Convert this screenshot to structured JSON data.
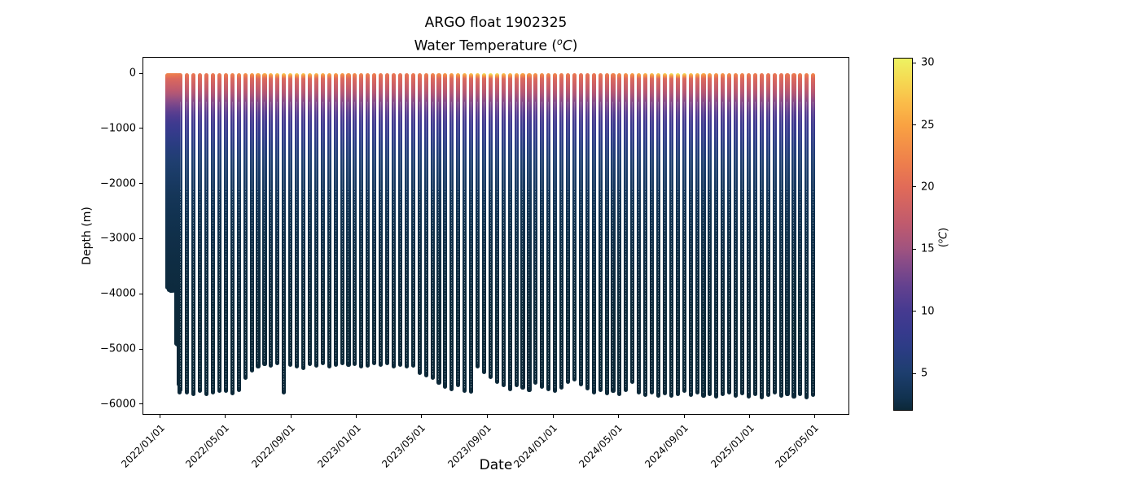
{
  "title": {
    "line1": "ARGO float 1902325",
    "line2_pre": "Water Temperature (",
    "line2_sup": "o",
    "line2_c": "C",
    "line2_post": ")"
  },
  "chart_data": {
    "type": "scatter",
    "title": "ARGO float 1902325",
    "subtitle": "Water Temperature (°C)",
    "xlabel": "Date",
    "ylabel": "Depth (m)",
    "grid": false,
    "epoch": "2022-01-01",
    "xlim_days": [
      -33,
      1281
    ],
    "ylim": [
      295,
      -6195
    ],
    "x_ticks": [
      {
        "label": "2022/01/01",
        "day": 0
      },
      {
        "label": "2022/05/01",
        "day": 120
      },
      {
        "label": "2022/09/01",
        "day": 243
      },
      {
        "label": "2023/01/01",
        "day": 365
      },
      {
        "label": "2023/05/01",
        "day": 485
      },
      {
        "label": "2023/09/01",
        "day": 608
      },
      {
        "label": "2024/01/01",
        "day": 730
      },
      {
        "label": "2024/05/01",
        "day": 851
      },
      {
        "label": "2024/09/01",
        "day": 974
      },
      {
        "label": "2025/01/01",
        "day": 1096
      },
      {
        "label": "2025/05/01",
        "day": 1216
      }
    ],
    "y_ticks": [
      {
        "label": "0",
        "value": 0
      },
      {
        "label": "−1000",
        "value": -1000
      },
      {
        "label": "−2000",
        "value": -2000
      },
      {
        "label": "−3000",
        "value": -3000
      },
      {
        "label": "−4000",
        "value": -4000
      },
      {
        "label": "−5000",
        "value": -5000
      },
      {
        "label": "−6000",
        "value": -6000
      }
    ],
    "colorbar": {
      "label_pre": "(",
      "label_sup": "o",
      "label_c": "C",
      "label_post": ")",
      "vmin": 2.0,
      "vmax": 30.4,
      "ticks": [
        {
          "label": "5",
          "value": 5
        },
        {
          "label": "10",
          "value": 10
        },
        {
          "label": "15",
          "value": 15
        },
        {
          "label": "20",
          "value": 20
        },
        {
          "label": "25",
          "value": 25
        },
        {
          "label": "30",
          "value": 30
        }
      ],
      "colormap": "thermal",
      "stops": [
        [
          2.0,
          "#0c2838"
        ],
        [
          3.0,
          "#113250"
        ],
        [
          5.0,
          "#1d3e6e"
        ],
        [
          7.0,
          "#2c3c85"
        ],
        [
          8.5,
          "#383a8e"
        ],
        [
          10.0,
          "#463a90"
        ],
        [
          12.0,
          "#63418f"
        ],
        [
          14.0,
          "#8a4c87"
        ],
        [
          15.0,
          "#a0537f"
        ],
        [
          17.0,
          "#bf5a6e"
        ],
        [
          20.0,
          "#e16b58"
        ],
        [
          22.0,
          "#ee7f4c"
        ],
        [
          25.0,
          "#f9a242"
        ],
        [
          27.0,
          "#fabf4a"
        ],
        [
          28.5,
          "#f6d751"
        ],
        [
          30.4,
          "#edf262"
        ]
      ]
    },
    "temp_profile_breakpoints": [
      [
        -100,
        19.5
      ],
      [
        -200,
        18.2
      ],
      [
        -300,
        17.0
      ],
      [
        -400,
        15.6
      ],
      [
        -500,
        14.1
      ],
      [
        -600,
        12.8
      ],
      [
        -700,
        11.5
      ],
      [
        -800,
        10.4
      ],
      [
        -900,
        9.4
      ],
      [
        -1000,
        8.6
      ],
      [
        -1200,
        7.2
      ],
      [
        -1400,
        6.1
      ],
      [
        -1600,
        5.2
      ],
      [
        -1800,
        4.6
      ],
      [
        -2000,
        4.1
      ],
      [
        -2200,
        3.6
      ],
      [
        -2600,
        3.0
      ],
      [
        -3000,
        2.7
      ],
      [
        -3500,
        2.4
      ],
      [
        -4000,
        2.2
      ],
      [
        -4500,
        2.05
      ],
      [
        -5000,
        1.95
      ],
      [
        -5500,
        1.88
      ],
      [
        -5950,
        1.85
      ]
    ],
    "profiles_format": [
      "day_since_epoch",
      "bottom_depth_m",
      "surface_temp_C"
    ],
    "profiles": [
      [
        14,
        -3930,
        22.6
      ],
      [
        16,
        -3960,
        22.3
      ],
      [
        18,
        -3940,
        22.5
      ],
      [
        20,
        -3985,
        22.2
      ],
      [
        22,
        -3950,
        22.4
      ],
      [
        24,
        -3975,
        22.1
      ],
      [
        26,
        -3945,
        22.3
      ],
      [
        28,
        -3970,
        22.0
      ],
      [
        30,
        -4940,
        22.2
      ],
      [
        32,
        -4960,
        21.9
      ],
      [
        34,
        -5680,
        22.1
      ],
      [
        36,
        -5830,
        21.8
      ],
      [
        38,
        -5780,
        21.8
      ],
      [
        50,
        -5820,
        21.6
      ],
      [
        62,
        -5850,
        21.3
      ],
      [
        74,
        -5800,
        21.2
      ],
      [
        86,
        -5860,
        21.3
      ],
      [
        98,
        -5830,
        21.5
      ],
      [
        110,
        -5790,
        21.6
      ],
      [
        122,
        -5800,
        22.2
      ],
      [
        134,
        -5840,
        22.6
      ],
      [
        146,
        -5780,
        23.1
      ],
      [
        158,
        -5560,
        23.8
      ],
      [
        170,
        -5430,
        24.6
      ],
      [
        182,
        -5350,
        25.6
      ],
      [
        194,
        -5310,
        26.4
      ],
      [
        206,
        -5340,
        27.1
      ],
      [
        218,
        -5300,
        27.7
      ],
      [
        230,
        -5820,
        28.0
      ],
      [
        242,
        -5330,
        28.3
      ],
      [
        254,
        -5360,
        28.2
      ],
      [
        266,
        -5390,
        27.9
      ],
      [
        278,
        -5310,
        27.4
      ],
      [
        290,
        -5340,
        26.9
      ],
      [
        302,
        -5300,
        26.3
      ],
      [
        314,
        -5350,
        25.6
      ],
      [
        326,
        -5320,
        25.0
      ],
      [
        338,
        -5290,
        24.4
      ],
      [
        350,
        -5330,
        23.9
      ],
      [
        362,
        -5310,
        23.4
      ],
      [
        374,
        -5360,
        23.0
      ],
      [
        386,
        -5340,
        22.6
      ],
      [
        398,
        -5300,
        22.2
      ],
      [
        410,
        -5330,
        21.8
      ],
      [
        422,
        -5290,
        21.5
      ],
      [
        434,
        -5350,
        21.3
      ],
      [
        446,
        -5320,
        21.2
      ],
      [
        458,
        -5360,
        21.4
      ],
      [
        470,
        -5340,
        21.6
      ],
      [
        482,
        -5470,
        21.9
      ],
      [
        494,
        -5520,
        22.4
      ],
      [
        506,
        -5560,
        22.9
      ],
      [
        518,
        -5650,
        23.6
      ],
      [
        530,
        -5720,
        24.4
      ],
      [
        542,
        -5760,
        25.2
      ],
      [
        554,
        -5700,
        26.1
      ],
      [
        566,
        -5790,
        26.9
      ],
      [
        578,
        -5810,
        27.6
      ],
      [
        590,
        -5350,
        28.1
      ],
      [
        602,
        -5450,
        29.6
      ],
      [
        614,
        -5550,
        30.2
      ],
      [
        626,
        -5640,
        29.3
      ],
      [
        638,
        -5700,
        27.6
      ],
      [
        650,
        -5760,
        27.0
      ],
      [
        662,
        -5690,
        26.2
      ],
      [
        674,
        -5740,
        25.5
      ],
      [
        686,
        -5780,
        24.8
      ],
      [
        698,
        -5650,
        24.2
      ],
      [
        710,
        -5720,
        23.7
      ],
      [
        722,
        -5760,
        23.2
      ],
      [
        734,
        -5800,
        22.8
      ],
      [
        746,
        -5740,
        22.3
      ],
      [
        758,
        -5640,
        21.9
      ],
      [
        770,
        -5590,
        21.5
      ],
      [
        782,
        -5680,
        21.3
      ],
      [
        794,
        -5750,
        21.2
      ],
      [
        806,
        -5820,
        21.4
      ],
      [
        818,
        -5780,
        21.7
      ],
      [
        830,
        -5840,
        22.1
      ],
      [
        842,
        -5800,
        22.6
      ],
      [
        854,
        -5860,
        23.3
      ],
      [
        866,
        -5780,
        24.1
      ],
      [
        878,
        -5640,
        24.9
      ],
      [
        890,
        -5820,
        25.8
      ],
      [
        902,
        -5870,
        26.6
      ],
      [
        914,
        -5830,
        27.3
      ],
      [
        926,
        -5880,
        27.9
      ],
      [
        938,
        -5840,
        28.3
      ],
      [
        950,
        -5890,
        29.9
      ],
      [
        962,
        -5850,
        30.0
      ],
      [
        974,
        -5800,
        29.2
      ],
      [
        986,
        -5870,
        27.6
      ],
      [
        998,
        -5830,
        26.9
      ],
      [
        1010,
        -5890,
        26.1
      ],
      [
        1022,
        -5850,
        25.4
      ],
      [
        1034,
        -5900,
        24.7
      ],
      [
        1046,
        -5860,
        24.1
      ],
      [
        1058,
        -5820,
        23.6
      ],
      [
        1070,
        -5880,
        23.1
      ],
      [
        1082,
        -5840,
        22.7
      ],
      [
        1094,
        -5900,
        22.2
      ],
      [
        1106,
        -5860,
        21.8
      ],
      [
        1118,
        -5910,
        21.5
      ],
      [
        1130,
        -5870,
        21.3
      ],
      [
        1142,
        -5830,
        21.2
      ],
      [
        1154,
        -5890,
        21.3
      ],
      [
        1166,
        -5850,
        21.5
      ],
      [
        1178,
        -5900,
        21.8
      ],
      [
        1190,
        -5860,
        22.1
      ],
      [
        1202,
        -5910,
        22.5
      ],
      [
        1214,
        -5870,
        22.9
      ]
    ]
  }
}
